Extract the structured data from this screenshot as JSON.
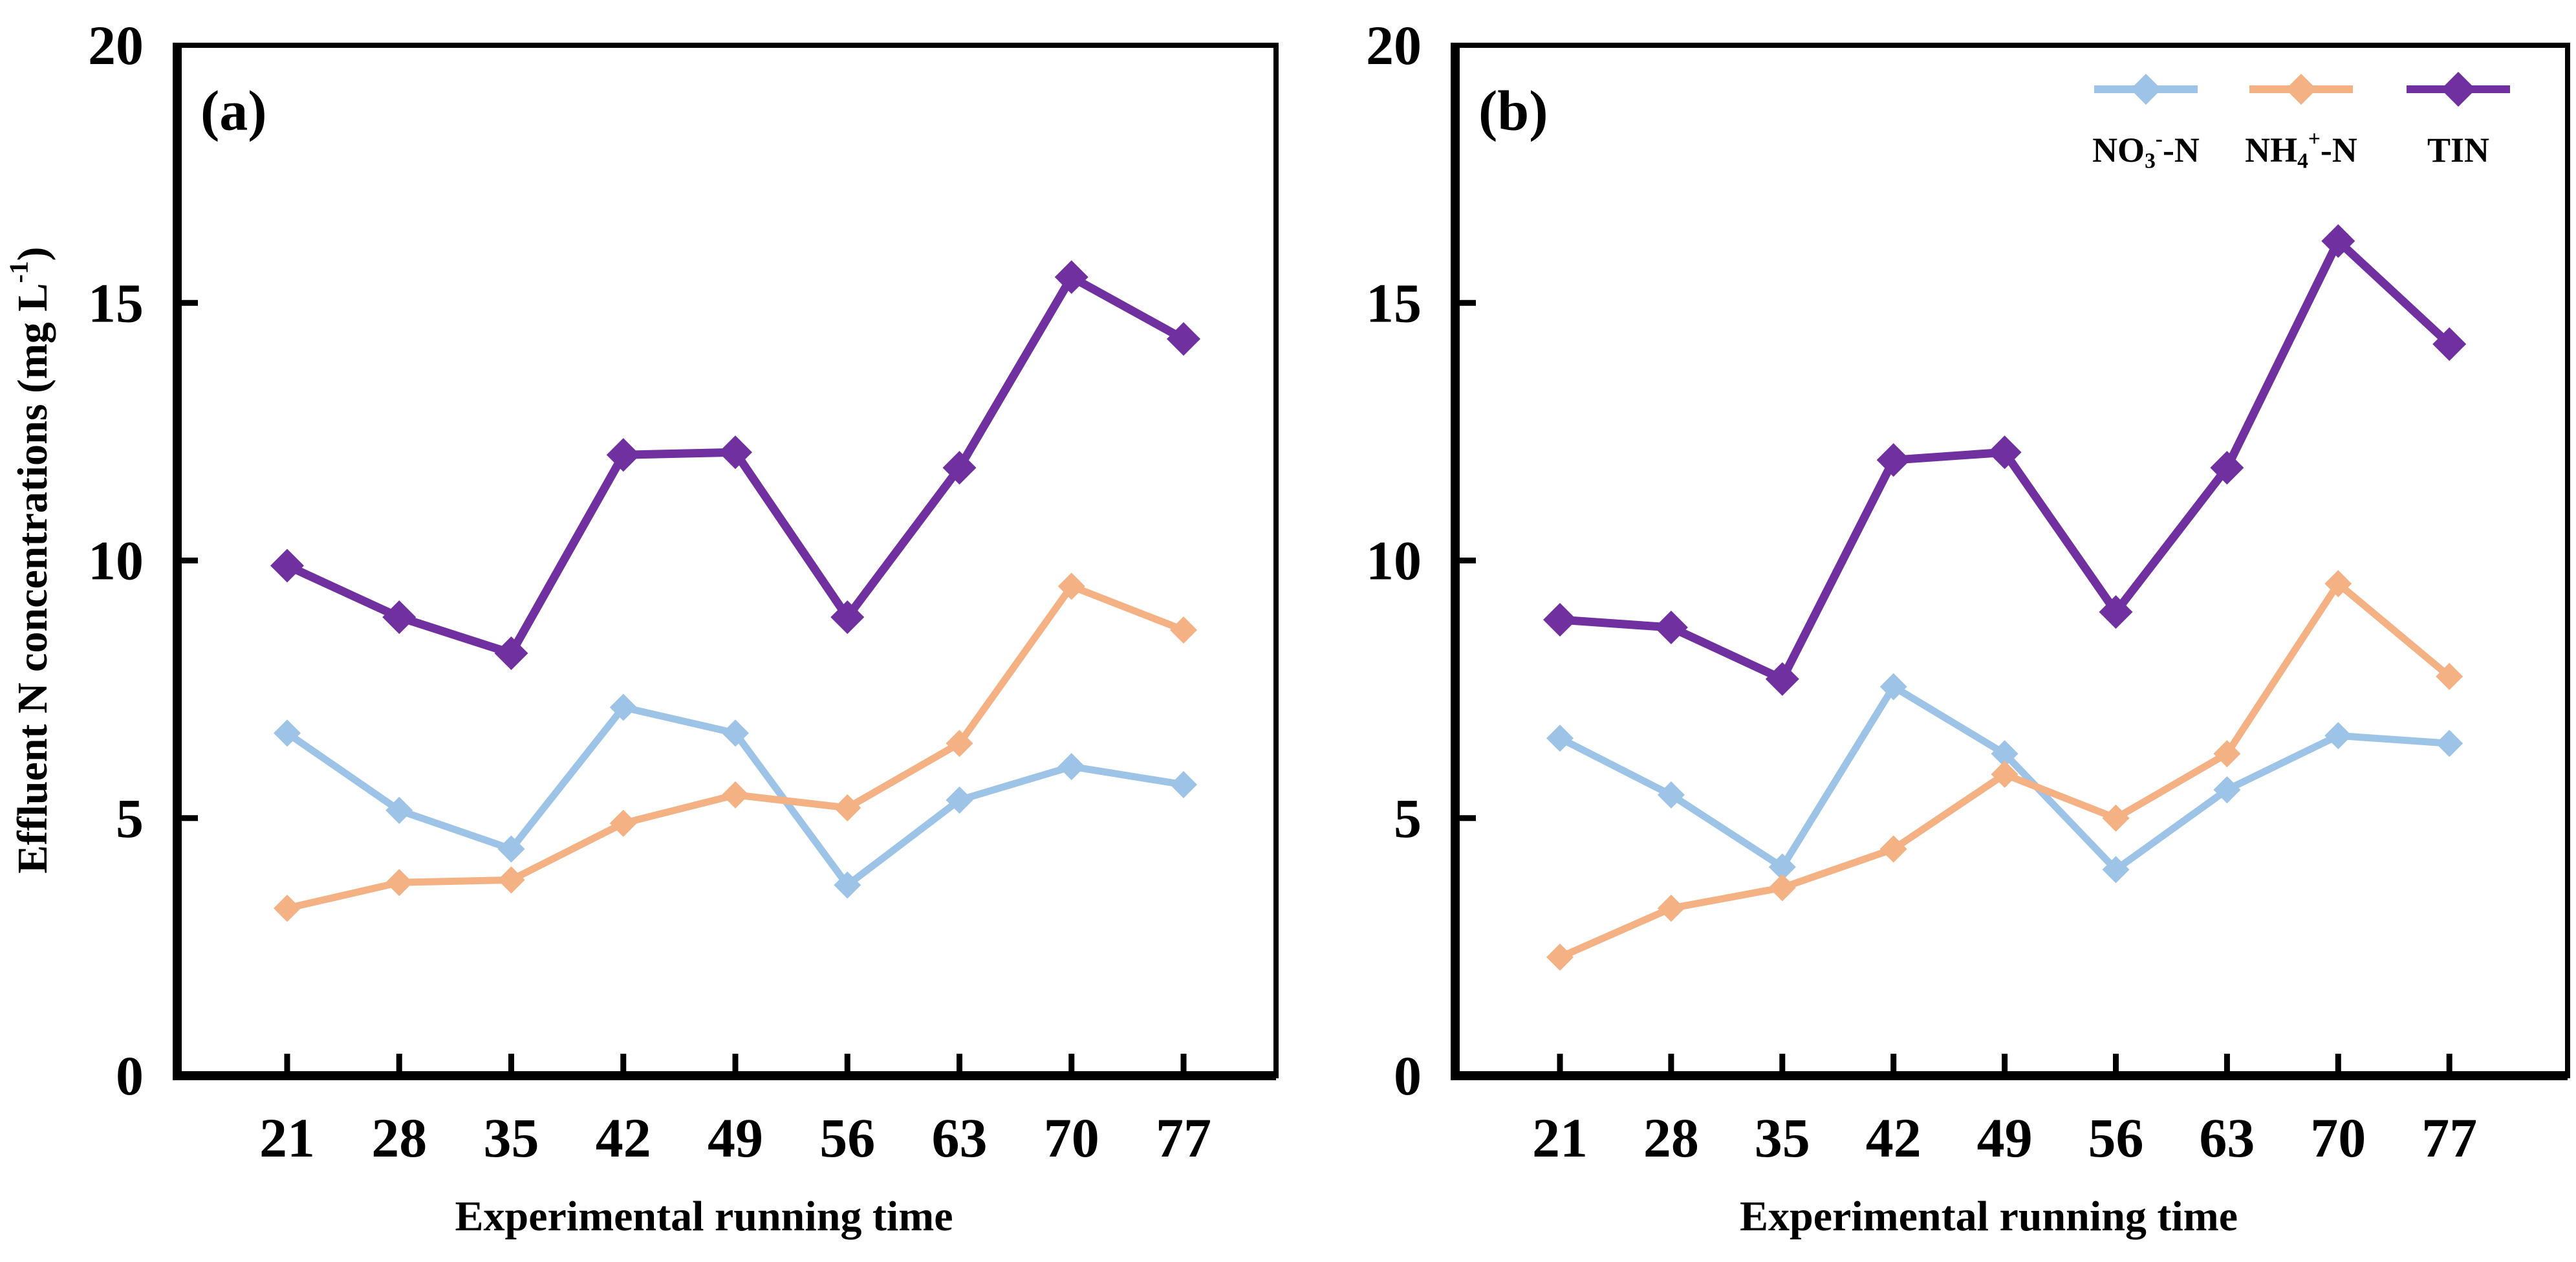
{
  "figure": {
    "background": "#ffffff",
    "y_axis_title": "Effluent N concentrations (mg L-1)",
    "y_axis_title_parts": [
      {
        "t": "Effluent N concentrations (mg L"
      },
      {
        "t": "-1",
        "style": "sup"
      },
      {
        "t": ")"
      }
    ],
    "x_axis_title": "Experimental running time",
    "axis_color": "#000000",
    "series_colors": {
      "no3": "#9DC3E6",
      "nh4": "#F4B183",
      "tin": "#7030A0"
    }
  },
  "legend": {
    "position": "top-right-of-panel-b",
    "entries": [
      {
        "id": "no3",
        "label": "NO3--N",
        "label_parts": [
          {
            "t": "NO"
          },
          {
            "t": "3",
            "style": "sub"
          },
          {
            "t": "-",
            "style": "sup"
          },
          {
            "t": "-N"
          }
        ],
        "color": "#9DC3E6"
      },
      {
        "id": "nh4",
        "label": "NH4+-N",
        "label_parts": [
          {
            "t": "NH"
          },
          {
            "t": "4",
            "style": "sub"
          },
          {
            "t": "+",
            "style": "sup"
          },
          {
            "t": "-N"
          }
        ],
        "color": "#F4B183"
      },
      {
        "id": "tin",
        "label": "TIN",
        "label_parts": [
          {
            "t": "TIN"
          }
        ],
        "color": "#7030A0"
      }
    ]
  },
  "chart_data": [
    {
      "type": "line",
      "panel_label": "(a)",
      "x_categories": [
        21,
        28,
        35,
        42,
        49,
        56,
        63,
        70,
        77
      ],
      "xlabel": "Experimental running time",
      "ylabel": "Effluent N concentrations (mg L-1)",
      "ylim": [
        0,
        20
      ],
      "yticks": [
        0,
        5,
        10,
        15,
        20
      ],
      "grid": false,
      "legend_visible": false,
      "series": [
        {
          "name": "NO3--N",
          "color": "#9DC3E6",
          "marker": "diamond",
          "values": [
            6.65,
            5.15,
            4.4,
            7.15,
            6.65,
            3.7,
            5.35,
            6.0,
            5.65
          ]
        },
        {
          "name": "NH4+-N",
          "color": "#F4B183",
          "marker": "diamond",
          "values": [
            3.25,
            3.75,
            3.8,
            4.9,
            5.45,
            5.2,
            6.45,
            9.5,
            8.65
          ]
        },
        {
          "name": "TIN",
          "color": "#7030A0",
          "marker": "diamond",
          "values": [
            9.9,
            8.9,
            8.2,
            12.05,
            12.1,
            8.9,
            11.8,
            15.5,
            14.3
          ]
        }
      ]
    },
    {
      "type": "line",
      "panel_label": "(b)",
      "x_categories": [
        21,
        28,
        35,
        42,
        49,
        56,
        63,
        70,
        77
      ],
      "xlabel": "Experimental running time",
      "ylabel": "Effluent N concentrations (mg L-1)",
      "ylim": [
        0,
        20
      ],
      "yticks": [
        0,
        5,
        10,
        15,
        20
      ],
      "grid": false,
      "legend_visible": true,
      "series": [
        {
          "name": "NO3--N",
          "color": "#9DC3E6",
          "marker": "diamond",
          "values": [
            6.55,
            5.45,
            4.05,
            7.55,
            6.25,
            4.0,
            5.55,
            6.6,
            6.45
          ]
        },
        {
          "name": "NH4+-N",
          "color": "#F4B183",
          "marker": "diamond",
          "values": [
            2.3,
            3.25,
            3.65,
            4.4,
            5.85,
            5.0,
            6.25,
            9.55,
            7.75
          ]
        },
        {
          "name": "TIN",
          "color": "#7030A0",
          "marker": "diamond",
          "values": [
            8.85,
            8.7,
            7.7,
            11.95,
            12.1,
            9.0,
            11.8,
            16.2,
            14.2
          ]
        }
      ]
    }
  ]
}
